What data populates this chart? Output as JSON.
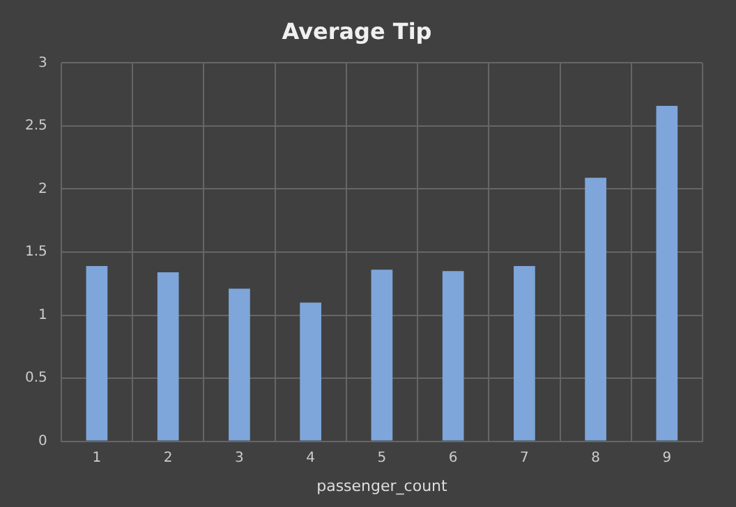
{
  "chart_data": {
    "type": "bar",
    "title": "Average Tip",
    "xlabel": "passenger_count",
    "categories": [
      "1",
      "2",
      "3",
      "4",
      "5",
      "6",
      "7",
      "8",
      "9"
    ],
    "values": [
      1.39,
      1.34,
      1.21,
      1.1,
      1.36,
      1.35,
      1.39,
      2.09,
      2.66
    ],
    "color": "#7fa6da",
    "ylim": [
      0,
      3
    ],
    "yticks": [
      0,
      0.5,
      1,
      1.5,
      2,
      2.5,
      3
    ],
    "grid": true
  }
}
